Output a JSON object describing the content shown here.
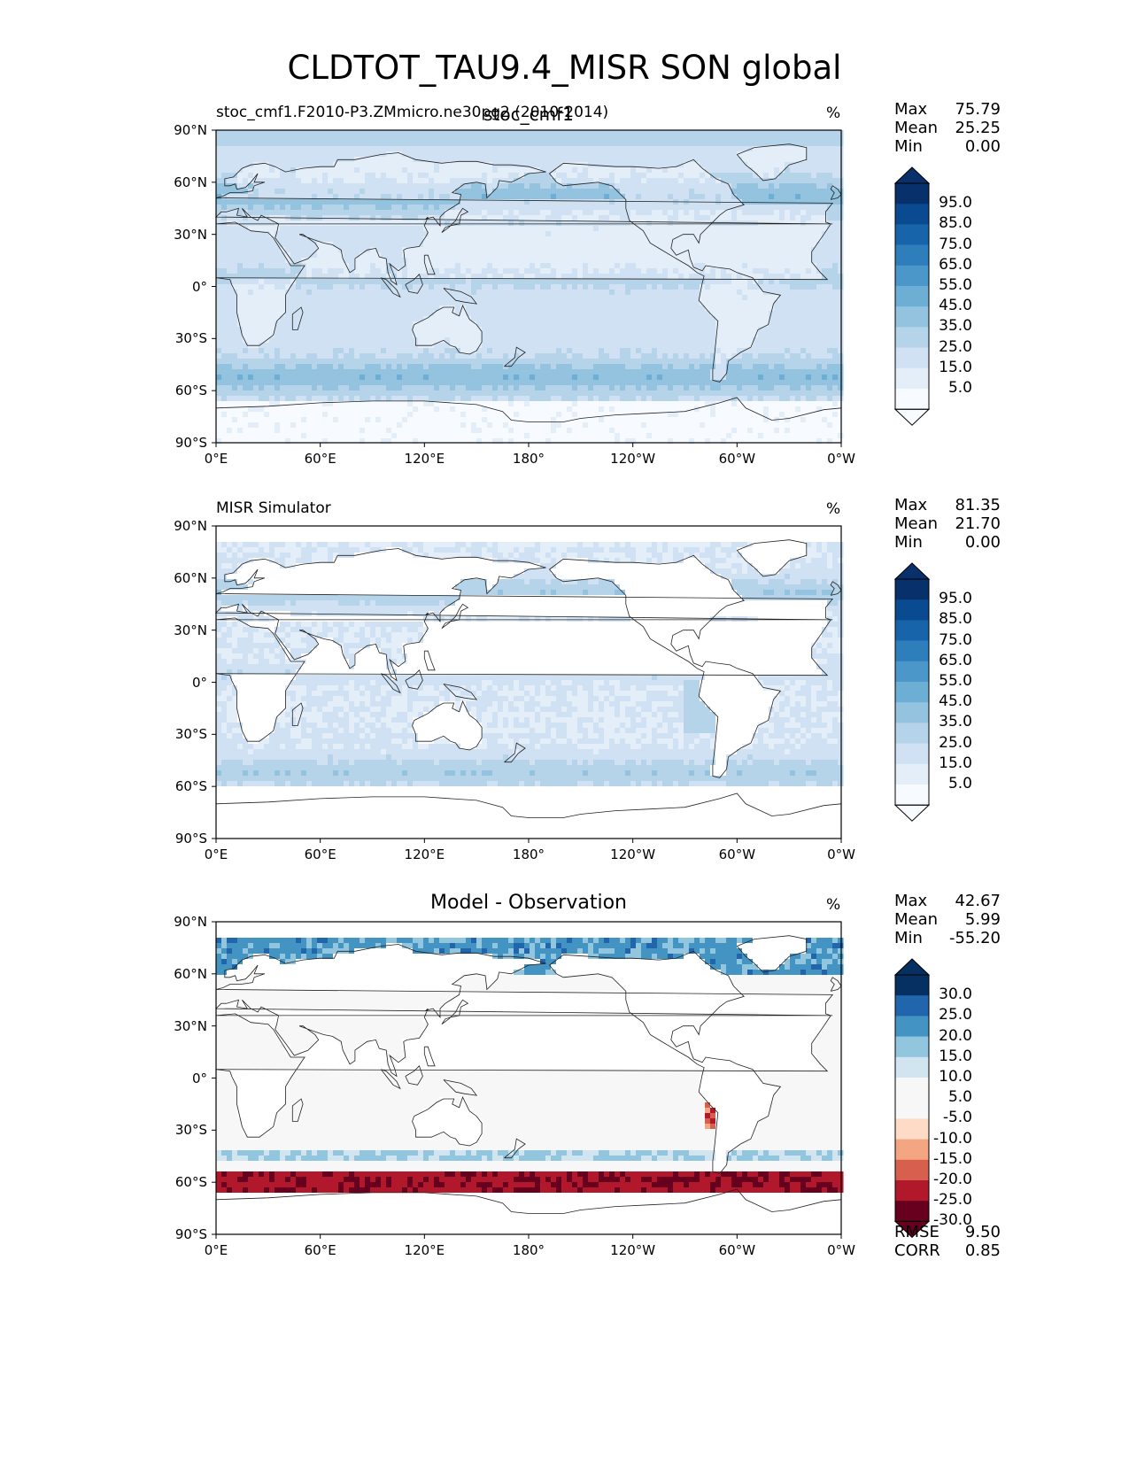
{
  "figure": {
    "title": "CLDTOT_TAU9.4_MISR SON global",
    "lat_ticks": [
      "90°N",
      "60°N",
      "30°N",
      "0°",
      "30°S",
      "60°S",
      "90°S"
    ],
    "lon_ticks": [
      "0°E",
      "60°E",
      "120°E",
      "180°",
      "120°W",
      "60°W",
      "0°W"
    ]
  },
  "panels": [
    {
      "left_title": "stoc_cmf1.F2010-P3.ZMmicro.ne30pg2 (2010-2014)",
      "center_title": "stoc_cmf1",
      "units": "%",
      "stats": {
        "max_label": "Max",
        "max": "75.79",
        "mean_label": "Mean",
        "mean": "25.25",
        "min_label": "Min",
        "min": "0.00"
      },
      "colorbar": {
        "labels": [
          "95.0",
          "85.0",
          "75.0",
          "65.0",
          "55.0",
          "45.0",
          "35.0",
          "25.0",
          "15.0",
          "5.0"
        ]
      }
    },
    {
      "left_title": "MISR Simulator",
      "center_title": "",
      "units": "%",
      "stats": {
        "max_label": "Max",
        "max": "81.35",
        "mean_label": "Mean",
        "mean": "21.70",
        "min_label": "Min",
        "min": "0.00"
      },
      "colorbar": {
        "labels": [
          "95.0",
          "85.0",
          "75.0",
          "65.0",
          "55.0",
          "45.0",
          "35.0",
          "25.0",
          "15.0",
          "5.0"
        ]
      }
    },
    {
      "left_title": "",
      "center_title": "Model - Observation",
      "units": "%",
      "stats": {
        "max_label": "Max",
        "max": "42.67",
        "mean_label": "Mean",
        "mean": "5.99",
        "min_label": "Min",
        "min": "-55.20"
      },
      "colorbar": {
        "labels": [
          "30.0",
          "25.0",
          "20.0",
          "15.0",
          "10.0",
          "5.0",
          "-5.0",
          "-10.0",
          "-15.0",
          "-20.0",
          "-25.0",
          "-30.0"
        ]
      },
      "metrics": {
        "rmse_label": "RMSE",
        "rmse": "9.50",
        "corr_label": "CORR",
        "corr": "0.85"
      }
    }
  ],
  "chart_data": [
    {
      "type": "heatmap",
      "title": "stoc_cmf1",
      "subtitle": "stoc_cmf1.F2010-P3.ZMmicro.ne30pg2 (2010-2014)",
      "units": "%",
      "x_range": [
        0,
        360
      ],
      "y_range": [
        -90,
        90
      ],
      "contour_levels": [
        0,
        5,
        15,
        25,
        35,
        45,
        55,
        65,
        75,
        85,
        95,
        100
      ],
      "colormap": [
        "#f7fbff",
        "#e3eef9",
        "#cfe1f2",
        "#b5d4e9",
        "#93c3df",
        "#6daed5",
        "#4b97c9",
        "#2f7ebc",
        "#1864aa",
        "#0a4a90",
        "#08306b"
      ],
      "max": 75.79,
      "mean": 25.25,
      "min": 0.0
    },
    {
      "type": "heatmap",
      "title": "MISR Simulator",
      "units": "%",
      "x_range": [
        0,
        360
      ],
      "y_range": [
        -90,
        90
      ],
      "contour_levels": [
        0,
        5,
        15,
        25,
        35,
        45,
        55,
        65,
        75,
        85,
        95,
        100
      ],
      "colormap": [
        "#f7fbff",
        "#e3eef9",
        "#cfe1f2",
        "#b5d4e9",
        "#93c3df",
        "#6daed5",
        "#4b97c9",
        "#2f7ebc",
        "#1864aa",
        "#0a4a90",
        "#08306b"
      ],
      "max": 81.35,
      "mean": 21.7,
      "min": 0.0
    },
    {
      "type": "heatmap",
      "title": "Model - Observation",
      "units": "%",
      "x_range": [
        0,
        360
      ],
      "y_range": [
        -90,
        90
      ],
      "contour_levels": [
        -30,
        -25,
        -20,
        -15,
        -10,
        -5,
        5,
        10,
        15,
        20,
        25,
        30
      ],
      "colormap": [
        "#67001f",
        "#b2182b",
        "#d6604d",
        "#f4a582",
        "#fddbc7",
        "#f7f7f7",
        "#f7f7f7",
        "#d1e5f0",
        "#92c5de",
        "#4393c3",
        "#2166ac",
        "#053061"
      ],
      "max": 42.67,
      "mean": 5.99,
      "min": -55.2,
      "rmse": 9.5,
      "corr": 0.85
    }
  ]
}
